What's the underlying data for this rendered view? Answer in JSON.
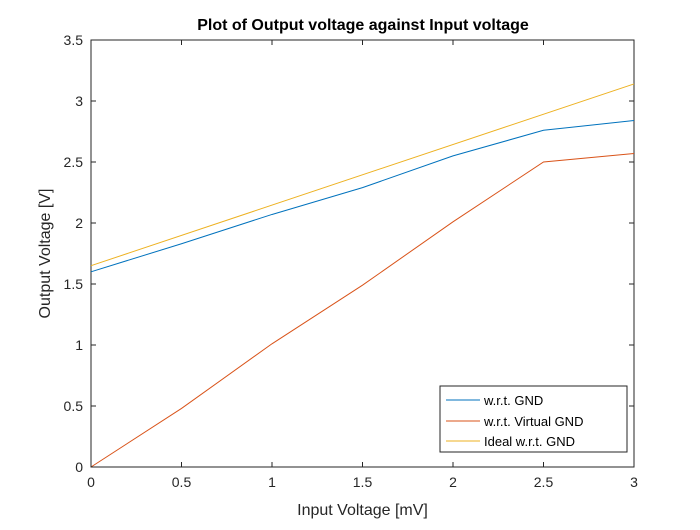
{
  "chart_data": {
    "type": "line",
    "title": "Plot of Output voltage against Input voltage",
    "xlabel": "Input Voltage [mV]",
    "ylabel": "Output Voltage [V]",
    "xlim": [
      0,
      3
    ],
    "ylim": [
      0,
      3.5
    ],
    "xticks": [
      "0",
      "0.5",
      "1",
      "1.5",
      "2",
      "2.5",
      "3"
    ],
    "yticks": [
      "0",
      "0.5",
      "1",
      "1.5",
      "2",
      "2.5",
      "3",
      "3.5"
    ],
    "grid": false,
    "legend_position": "bottom-right",
    "series": [
      {
        "name": "w.r.t. GND",
        "color": "#0072BD",
        "x": [
          0,
          0.5,
          1,
          1.5,
          2,
          2.5,
          3
        ],
        "y": [
          1.6,
          1.83,
          2.07,
          2.29,
          2.55,
          2.76,
          2.84
        ]
      },
      {
        "name": "w.r.t. Virtual GND",
        "color": "#D95319",
        "x": [
          0,
          0.5,
          1,
          1.5,
          2,
          2.5,
          3
        ],
        "y": [
          0,
          0.48,
          1.01,
          1.49,
          2.01,
          2.5,
          2.57
        ]
      },
      {
        "name": "Ideal w.r.t. GND",
        "color": "#EDB120",
        "x": [
          0,
          3
        ],
        "y": [
          1.65,
          3.14
        ]
      }
    ]
  }
}
